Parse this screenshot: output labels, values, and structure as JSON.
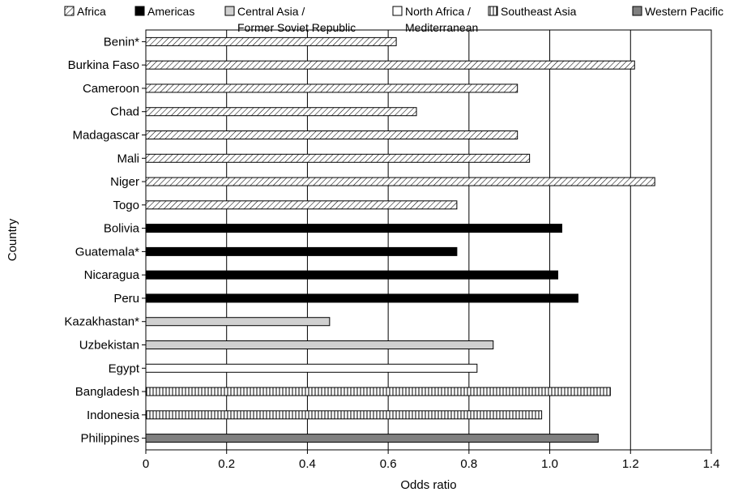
{
  "chart_data": {
    "type": "bar",
    "orientation": "horizontal",
    "xlabel": "Odds ratio",
    "ylabel": "Country",
    "xlim": [
      0,
      1.4
    ],
    "x_ticks": [
      "0",
      "0.2",
      "0.4",
      "0.6",
      "0.8",
      "1.0",
      "1.2",
      "1.4"
    ],
    "grid": "vertical",
    "legend_position": "top",
    "legend": [
      {
        "key": "africa",
        "lines": [
          "Africa"
        ],
        "fill": "hatch-diagonal"
      },
      {
        "key": "americas",
        "lines": [
          "Americas"
        ],
        "fill": "#000000"
      },
      {
        "key": "central_asia",
        "lines": [
          "Central Asia /",
          "Former Soviet  Republic"
        ],
        "fill": "#d0d0d0"
      },
      {
        "key": "north_africa",
        "lines": [
          "North Africa /",
          "Mediterranean"
        ],
        "fill": "#ffffff"
      },
      {
        "key": "southeast_asia",
        "lines": [
          "Southeast Asia"
        ],
        "fill": "hatch-vertical"
      },
      {
        "key": "western_pacific",
        "lines": [
          "Western Pacific"
        ],
        "fill": "#808080"
      }
    ],
    "bars": [
      {
        "country": "Benin*",
        "region": "africa",
        "value": 0.62
      },
      {
        "country": "Burkina Faso",
        "region": "africa",
        "value": 1.21
      },
      {
        "country": "Cameroon",
        "region": "africa",
        "value": 0.92
      },
      {
        "country": "Chad",
        "region": "africa",
        "value": 0.67
      },
      {
        "country": "Madagascar",
        "region": "africa",
        "value": 0.92
      },
      {
        "country": "Mali",
        "region": "africa",
        "value": 0.95
      },
      {
        "country": "Niger",
        "region": "africa",
        "value": 1.26
      },
      {
        "country": "Togo",
        "region": "africa",
        "value": 0.77
      },
      {
        "country": "Bolivia",
        "region": "americas",
        "value": 1.03
      },
      {
        "country": "Guatemala*",
        "region": "americas",
        "value": 0.77
      },
      {
        "country": "Nicaragua",
        "region": "americas",
        "value": 1.02
      },
      {
        "country": "Peru",
        "region": "americas",
        "value": 1.07
      },
      {
        "country": "Kazakhastan*",
        "region": "central_asia",
        "value": 0.455
      },
      {
        "country": "Uzbekistan",
        "region": "central_asia",
        "value": 0.86
      },
      {
        "country": "Egypt",
        "region": "north_africa",
        "value": 0.82
      },
      {
        "country": "Bangladesh",
        "region": "southeast_asia",
        "value": 1.15
      },
      {
        "country": "Indonesia",
        "region": "southeast_asia",
        "value": 0.98
      },
      {
        "country": "Philippines",
        "region": "western_pacific",
        "value": 1.12
      }
    ]
  }
}
